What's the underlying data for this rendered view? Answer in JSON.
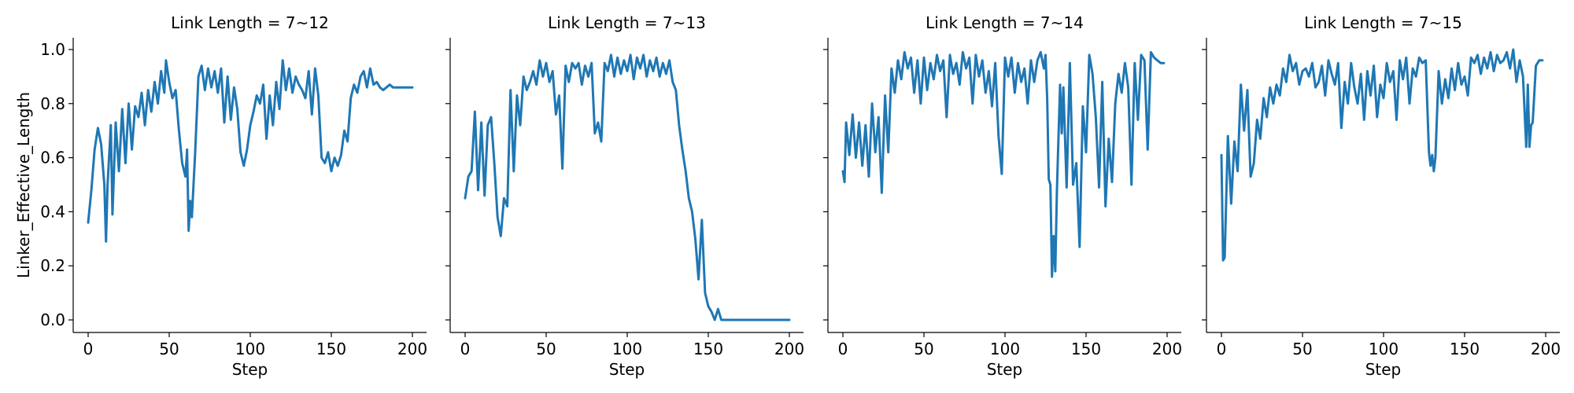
{
  "chart_data": [
    {
      "type": "line",
      "title": "Link Length = 7~12",
      "xlabel": "Step",
      "ylabel": "Linker_Effective_Length",
      "xlim": [
        0,
        200
      ],
      "ylim": [
        0.0,
        1.0
      ],
      "xticks": [
        "0",
        "50",
        "100",
        "150",
        "200"
      ],
      "yticks": [
        "0.0",
        "0.2",
        "0.4",
        "0.6",
        "0.8",
        "1.0"
      ],
      "color": "#1f77b4",
      "x": [
        0,
        2,
        4,
        6,
        8,
        10,
        11,
        12,
        14,
        15,
        17,
        19,
        21,
        23,
        25,
        27,
        29,
        31,
        33,
        35,
        37,
        39,
        41,
        43,
        45,
        47,
        48,
        50,
        52,
        54,
        56,
        58,
        60,
        61,
        62,
        63,
        64,
        66,
        68,
        70,
        72,
        74,
        76,
        78,
        80,
        82,
        84,
        86,
        88,
        90,
        92,
        94,
        96,
        98,
        100,
        102,
        104,
        106,
        108,
        110,
        112,
        114,
        116,
        118,
        120,
        122,
        124,
        126,
        128,
        130,
        132,
        134,
        136,
        138,
        140,
        142,
        144,
        146,
        148,
        150,
        152,
        154,
        156,
        158,
        160,
        162,
        164,
        166,
        168,
        170,
        172,
        174,
        176,
        178,
        180,
        182,
        184,
        186,
        188,
        190,
        192,
        194,
        196,
        198,
        200
      ],
      "y": [
        0.36,
        0.48,
        0.63,
        0.71,
        0.65,
        0.5,
        0.29,
        0.5,
        0.72,
        0.39,
        0.73,
        0.55,
        0.78,
        0.58,
        0.8,
        0.63,
        0.79,
        0.75,
        0.84,
        0.72,
        0.85,
        0.77,
        0.88,
        0.8,
        0.92,
        0.84,
        0.96,
        0.88,
        0.82,
        0.85,
        0.7,
        0.58,
        0.53,
        0.63,
        0.33,
        0.44,
        0.38,
        0.62,
        0.9,
        0.94,
        0.85,
        0.93,
        0.86,
        0.92,
        0.84,
        0.93,
        0.73,
        0.9,
        0.74,
        0.86,
        0.78,
        0.62,
        0.57,
        0.63,
        0.72,
        0.77,
        0.83,
        0.8,
        0.87,
        0.67,
        0.83,
        0.72,
        0.88,
        0.78,
        0.96,
        0.85,
        0.93,
        0.84,
        0.9,
        0.87,
        0.85,
        0.82,
        0.92,
        0.76,
        0.93,
        0.83,
        0.6,
        0.58,
        0.62,
        0.55,
        0.6,
        0.57,
        0.61,
        0.7,
        0.66,
        0.82,
        0.87,
        0.84,
        0.9,
        0.92,
        0.86,
        0.93,
        0.87,
        0.88,
        0.86,
        0.85,
        0.86,
        0.87,
        0.86,
        0.86,
        0.86,
        0.86,
        0.86,
        0.86,
        0.86
      ]
    },
    {
      "type": "line",
      "title": "Link Length = 7~13",
      "xlabel": "Step",
      "ylabel": "",
      "xlim": [
        0,
        200
      ],
      "ylim": [
        0.0,
        1.0
      ],
      "xticks": [
        "0",
        "50",
        "100",
        "150",
        "200"
      ],
      "yticks": [],
      "color": "#1f77b4",
      "x": [
        0,
        2,
        4,
        6,
        8,
        10,
        12,
        14,
        16,
        18,
        20,
        22,
        24,
        26,
        28,
        30,
        32,
        34,
        36,
        38,
        40,
        42,
        44,
        46,
        48,
        50,
        52,
        54,
        56,
        58,
        60,
        62,
        64,
        66,
        68,
        70,
        72,
        74,
        76,
        78,
        80,
        82,
        84,
        86,
        88,
        90,
        92,
        94,
        96,
        98,
        100,
        102,
        104,
        106,
        108,
        110,
        112,
        114,
        116,
        118,
        120,
        122,
        124,
        126,
        128,
        130,
        132,
        134,
        136,
        138,
        140,
        142,
        144,
        146,
        148,
        150,
        152,
        154,
        156,
        158,
        160,
        161,
        162,
        163,
        164,
        166,
        168,
        170,
        175,
        180,
        185,
        190,
        195,
        200
      ],
      "y": [
        0.45,
        0.53,
        0.55,
        0.77,
        0.48,
        0.73,
        0.46,
        0.72,
        0.75,
        0.58,
        0.38,
        0.31,
        0.45,
        0.42,
        0.85,
        0.55,
        0.83,
        0.72,
        0.9,
        0.85,
        0.88,
        0.92,
        0.87,
        0.96,
        0.9,
        0.95,
        0.88,
        0.92,
        0.76,
        0.83,
        0.56,
        0.94,
        0.88,
        0.95,
        0.93,
        0.95,
        0.87,
        0.94,
        0.9,
        0.95,
        0.69,
        0.73,
        0.66,
        0.95,
        0.92,
        0.98,
        0.9,
        0.97,
        0.91,
        0.96,
        0.92,
        0.98,
        0.89,
        0.97,
        0.93,
        0.98,
        0.9,
        0.96,
        0.92,
        0.97,
        0.9,
        0.95,
        0.91,
        0.96,
        0.88,
        0.85,
        0.72,
        0.63,
        0.55,
        0.45,
        0.4,
        0.3,
        0.15,
        0.37,
        0.1,
        0.05,
        0.03,
        0.0,
        0.04,
        0.0,
        0.0,
        0.0,
        0.0,
        0.0,
        0.0,
        0.0,
        0.0,
        0.0,
        0.0,
        0.0,
        0.0,
        0.0,
        0.0,
        0.0
      ]
    },
    {
      "type": "line",
      "title": "Link Length = 7~14",
      "xlabel": "Step",
      "ylabel": "",
      "xlim": [
        0,
        200
      ],
      "ylim": [
        0.0,
        1.0
      ],
      "xticks": [
        "0",
        "50",
        "100",
        "150",
        "200"
      ],
      "yticks": [],
      "color": "#1f77b4",
      "x": [
        0,
        1,
        2,
        4,
        6,
        8,
        10,
        12,
        14,
        16,
        18,
        20,
        22,
        24,
        26,
        28,
        30,
        32,
        34,
        36,
        38,
        40,
        42,
        44,
        46,
        48,
        50,
        52,
        54,
        56,
        58,
        60,
        62,
        64,
        66,
        68,
        70,
        72,
        74,
        76,
        78,
        80,
        82,
        84,
        86,
        88,
        90,
        92,
        94,
        96,
        98,
        100,
        102,
        104,
        106,
        108,
        110,
        112,
        114,
        116,
        118,
        120,
        122,
        124,
        125,
        126,
        127,
        128,
        129,
        130,
        131,
        132,
        133,
        134,
        135,
        136,
        138,
        140,
        142,
        144,
        146,
        148,
        150,
        152,
        154,
        156,
        158,
        160,
        162,
        164,
        166,
        168,
        170,
        172,
        174,
        176,
        178,
        180,
        182,
        184,
        186,
        188,
        190,
        192,
        194,
        196,
        198
      ],
      "y": [
        0.55,
        0.51,
        0.73,
        0.61,
        0.76,
        0.6,
        0.73,
        0.57,
        0.72,
        0.53,
        0.8,
        0.62,
        0.75,
        0.47,
        0.83,
        0.62,
        0.93,
        0.84,
        0.96,
        0.89,
        0.99,
        0.93,
        0.97,
        0.84,
        0.96,
        0.8,
        0.97,
        0.85,
        0.95,
        0.89,
        0.98,
        0.92,
        0.96,
        0.75,
        0.98,
        0.91,
        0.95,
        0.87,
        0.99,
        0.93,
        0.97,
        0.8,
        0.98,
        0.9,
        0.96,
        0.84,
        0.92,
        0.79,
        0.95,
        0.68,
        0.54,
        0.97,
        0.9,
        0.97,
        0.84,
        0.95,
        0.88,
        0.93,
        0.8,
        0.96,
        0.88,
        0.96,
        0.99,
        0.93,
        0.98,
        0.82,
        0.52,
        0.5,
        0.16,
        0.31,
        0.18,
        0.47,
        0.68,
        0.87,
        0.69,
        0.86,
        0.49,
        0.95,
        0.5,
        0.58,
        0.27,
        0.79,
        0.62,
        0.98,
        0.91,
        0.75,
        0.49,
        0.88,
        0.42,
        0.67,
        0.51,
        0.8,
        0.91,
        0.84,
        0.95,
        0.86,
        0.5,
        0.95,
        0.74,
        0.98,
        0.96,
        0.63,
        0.99,
        0.97,
        0.96,
        0.95,
        0.95
      ]
    },
    {
      "type": "line",
      "title": "Link Length = 7~15",
      "xlabel": "Step",
      "ylabel": "",
      "xlim": [
        0,
        200
      ],
      "ylim": [
        0.0,
        1.0
      ],
      "xticks": [
        "0",
        "50",
        "100",
        "150",
        "200"
      ],
      "yticks": [],
      "color": "#1f77b4",
      "x": [
        0,
        1,
        2,
        4,
        6,
        8,
        10,
        12,
        14,
        16,
        18,
        20,
        22,
        24,
        26,
        28,
        30,
        32,
        34,
        36,
        38,
        40,
        42,
        44,
        46,
        48,
        50,
        52,
        54,
        56,
        58,
        60,
        62,
        64,
        66,
        68,
        70,
        72,
        74,
        76,
        78,
        80,
        82,
        84,
        86,
        88,
        90,
        92,
        94,
        96,
        98,
        100,
        102,
        104,
        106,
        108,
        110,
        112,
        114,
        116,
        118,
        120,
        122,
        124,
        126,
        128,
        129,
        130,
        131,
        132,
        134,
        136,
        138,
        140,
        142,
        144,
        146,
        148,
        150,
        152,
        154,
        156,
        158,
        160,
        162,
        164,
        166,
        168,
        170,
        172,
        174,
        176,
        178,
        180,
        182,
        184,
        186,
        188,
        189,
        190,
        191,
        192,
        194,
        196,
        198
      ],
      "y": [
        0.61,
        0.22,
        0.23,
        0.68,
        0.43,
        0.66,
        0.55,
        0.87,
        0.7,
        0.85,
        0.53,
        0.58,
        0.74,
        0.67,
        0.82,
        0.75,
        0.86,
        0.8,
        0.87,
        0.83,
        0.93,
        0.88,
        0.98,
        0.92,
        0.95,
        0.87,
        0.92,
        0.93,
        0.9,
        0.95,
        0.86,
        0.88,
        0.94,
        0.83,
        0.96,
        0.91,
        0.87,
        0.95,
        0.71,
        0.88,
        0.8,
        0.95,
        0.86,
        0.8,
        0.91,
        0.74,
        0.92,
        0.83,
        0.94,
        0.75,
        0.87,
        0.82,
        0.95,
        0.88,
        0.92,
        0.74,
        0.96,
        0.89,
        0.97,
        0.8,
        0.93,
        0.9,
        0.97,
        0.95,
        0.96,
        0.62,
        0.57,
        0.61,
        0.55,
        0.6,
        0.92,
        0.8,
        0.89,
        0.82,
        0.93,
        0.85,
        0.95,
        0.87,
        0.9,
        0.83,
        0.97,
        0.95,
        0.98,
        0.91,
        0.97,
        0.93,
        0.99,
        0.92,
        0.98,
        0.95,
        0.96,
        0.99,
        0.93,
        1.0,
        0.88,
        0.96,
        0.9,
        0.64,
        0.87,
        0.64,
        0.72,
        0.73,
        0.94,
        0.96,
        0.96
      ]
    }
  ]
}
